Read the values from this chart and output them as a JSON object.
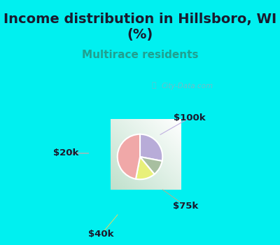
{
  "title": "Income distribution in Hillsboro, WI\n(%)",
  "subtitle": "Multirace residents",
  "slices": [
    {
      "label": "$100k",
      "value": 28,
      "color": "#b8acd8"
    },
    {
      "label": "$75k",
      "value": 11,
      "color": "#a8bfa0"
    },
    {
      "label": "$40k",
      "value": 14,
      "color": "#e8f07a"
    },
    {
      "label": "$20k",
      "value": 47,
      "color": "#f0a8a8"
    }
  ],
  "top_bg_color": "#00f0f0",
  "title_color": "#1a1a2e",
  "subtitle_color": "#20a090",
  "watermark": "City-Data.com",
  "title_fontsize": 14,
  "subtitle_fontsize": 11,
  "label_fontsize": 9.5,
  "label_color": "#1a1a2e",
  "line_colors": {
    "$100k": "#c0b0e0",
    "$75k": "#a0b898",
    "$40k": "#d0d870",
    "$20k": "#f0a0a0"
  }
}
